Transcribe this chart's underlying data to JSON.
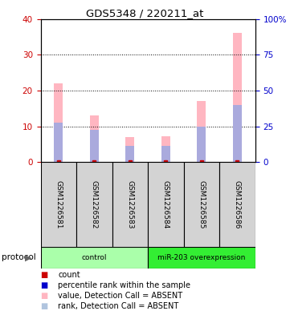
{
  "title": "GDS5348 / 220211_at",
  "samples": [
    "GSM1226581",
    "GSM1226582",
    "GSM1226583",
    "GSM1226584",
    "GSM1226585",
    "GSM1226586"
  ],
  "pink_values": [
    22,
    13,
    7,
    7.2,
    17,
    36
  ],
  "blue_values": [
    11,
    9,
    4.5,
    4.5,
    10,
    16
  ],
  "ylim_left": [
    0,
    40
  ],
  "ylim_right": [
    0,
    100
  ],
  "yticks_left": [
    0,
    10,
    20,
    30,
    40
  ],
  "yticks_right": [
    0,
    25,
    50,
    75,
    100
  ],
  "yticklabels_right": [
    "0",
    "25",
    "50",
    "75",
    "100%"
  ],
  "left_tick_color": "#cc0000",
  "right_tick_color": "#0000cc",
  "protocol_groups": [
    {
      "label": "control",
      "start": 0,
      "end": 3,
      "color": "#aaffaa"
    },
    {
      "label": "miR-203 overexpression",
      "start": 3,
      "end": 6,
      "color": "#33ee33"
    }
  ],
  "legend_items": [
    {
      "color": "#cc0000",
      "label": "count"
    },
    {
      "color": "#0000cc",
      "label": "percentile rank within the sample"
    },
    {
      "color": "#ffb6c1",
      "label": "value, Detection Call = ABSENT"
    },
    {
      "color": "#b0c4de",
      "label": "rank, Detection Call = ABSENT"
    }
  ],
  "bar_width": 0.25,
  "pink_color": "#ffb6c1",
  "blue_color": "#aaaadd",
  "red_color": "#cc0000",
  "label_area_color": "#d3d3d3",
  "protocol_arrow_label": "protocol"
}
